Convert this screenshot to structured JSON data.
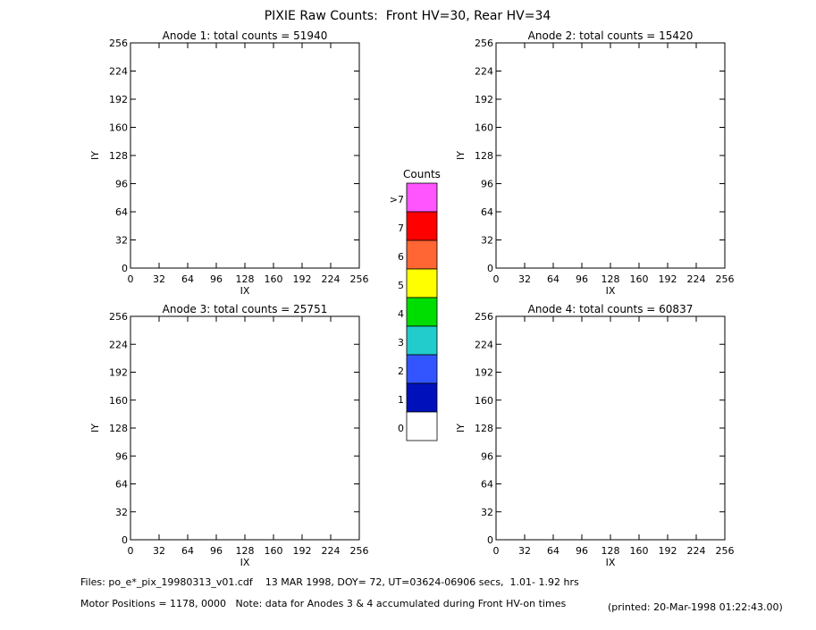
{
  "title": "PIXIE Raw Counts:  Front HV=30, Rear HV=34",
  "panels": [
    {
      "title": "Anode 1: total counts = 51940",
      "xlabel": "IX",
      "ylabel": "IY",
      "xlim": [
        0,
        256
      ],
      "ylim": [
        0,
        256
      ],
      "xticks": [
        0,
        32,
        64,
        96,
        128,
        160,
        192,
        224,
        256
      ],
      "yticks": [
        0,
        32,
        64,
        96,
        128,
        160,
        192,
        224,
        256
      ]
    },
    {
      "title": "Anode 2: total counts = 15420",
      "xlabel": "IX",
      "ylabel": "IY",
      "xlim": [
        0,
        256
      ],
      "ylim": [
        0,
        256
      ],
      "xticks": [
        0,
        32,
        64,
        96,
        128,
        160,
        192,
        224,
        256
      ],
      "yticks": [
        0,
        32,
        64,
        96,
        128,
        160,
        192,
        224,
        256
      ]
    },
    {
      "title": "Anode 3: total counts = 25751",
      "xlabel": "IX",
      "ylabel": "IY",
      "xlim": [
        0,
        256
      ],
      "ylim": [
        0,
        256
      ],
      "xticks": [
        0,
        32,
        64,
        96,
        128,
        160,
        192,
        224,
        256
      ],
      "yticks": [
        0,
        32,
        64,
        96,
        128,
        160,
        192,
        224,
        256
      ]
    },
    {
      "title": "Anode 4: total counts = 60837",
      "xlabel": "IX",
      "ylabel": "IY",
      "xlim": [
        0,
        256
      ],
      "ylim": [
        0,
        256
      ],
      "xticks": [
        0,
        32,
        64,
        96,
        128,
        160,
        192,
        224,
        256
      ],
      "yticks": [
        0,
        32,
        64,
        96,
        128,
        160,
        192,
        224,
        256
      ]
    }
  ],
  "colorbar": {
    "title": "Counts",
    "levels": [
      {
        "label": ">7",
        "color": "#ff55ff"
      },
      {
        "label": "7",
        "color": "#ff0000"
      },
      {
        "label": "6",
        "color": "#ff6633"
      },
      {
        "label": "5",
        "color": "#ffff00"
      },
      {
        "label": "4",
        "color": "#00dd00"
      },
      {
        "label": "3",
        "color": "#22cccc"
      },
      {
        "label": "2",
        "color": "#3355ff"
      },
      {
        "label": "1",
        "color": "#0011bb"
      },
      {
        "label": "0",
        "color": "#ffffff"
      }
    ]
  },
  "footer": {
    "files": "Files: po_e*_pix_19980313_v01.cdf    13 MAR 1998, DOY= 72, UT=03624-06906 secs,  1.01- 1.92 hrs",
    "motor": "Motor Positions = 1178, 0000   Note: data for Anodes 3 & 4 accumulated during Front HV-on times",
    "printed": "(printed: 20-Mar-1998 01:22:43.00)"
  }
}
